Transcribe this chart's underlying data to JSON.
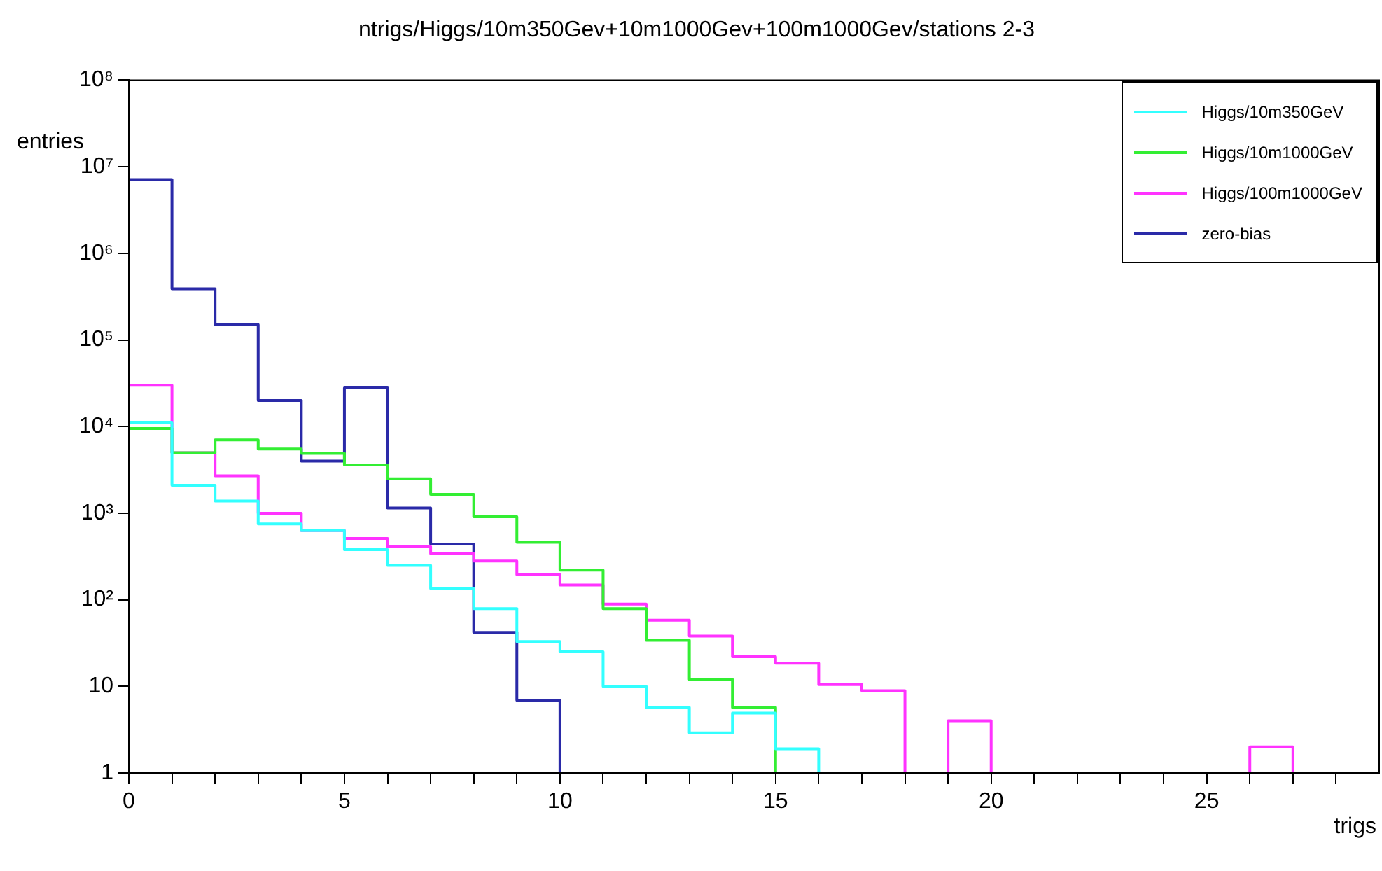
{
  "chart_data": {
    "type": "histogram",
    "title": "ntrigs/Higgs/10m350Gev+10m1000Gev+100m1000Gev/stations 2-3",
    "xlabel": "trigs",
    "ylabel": "entries",
    "bins": [
      0,
      1,
      2,
      3,
      4,
      5,
      6,
      7,
      8,
      9,
      10,
      11,
      12,
      13,
      14,
      15,
      16,
      17,
      18,
      19,
      20,
      21,
      22,
      23,
      24,
      25,
      26,
      27,
      28,
      29
    ],
    "series": [
      {
        "name": "Higgs/10m350GeV",
        "color": "#33ffff",
        "values": [
          11000,
          2100,
          1380,
          750,
          630,
          380,
          250,
          135,
          79,
          33,
          25,
          10,
          5.7,
          2.9,
          4.9,
          1.9,
          null,
          null,
          null,
          null,
          null,
          null,
          null,
          null,
          null,
          null,
          null,
          null,
          null
        ]
      },
      {
        "name": "Higgs/10m1000GeV",
        "color": "#33ee33",
        "values": [
          9500,
          5000,
          7000,
          5500,
          4900,
          3600,
          2500,
          1650,
          910,
          460,
          220,
          79,
          34,
          12,
          5.7,
          null,
          null,
          null,
          null,
          null,
          null,
          null,
          null,
          null,
          null,
          null,
          null,
          null,
          null
        ]
      },
      {
        "name": "Higgs/100m1000GeV",
        "color": "#ff33ff",
        "values": [
          30000,
          5000,
          2700,
          1000,
          630,
          510,
          410,
          340,
          280,
          195,
          148,
          89,
          58,
          38,
          22,
          18.5,
          10.5,
          8.9,
          null,
          4,
          null,
          null,
          null,
          null,
          null,
          null,
          2,
          null,
          null
        ]
      },
      {
        "name": "zero-bias",
        "color": "#2a2aa8",
        "values": [
          7100000,
          390000,
          150000,
          20000,
          4000,
          28000,
          1150,
          440,
          42,
          6.9,
          null,
          null,
          null,
          null,
          null,
          null,
          null,
          null,
          null,
          null,
          null,
          null,
          null,
          null,
          null,
          null,
          null,
          null,
          null
        ]
      }
    ],
    "xlim": [
      0,
      29
    ],
    "xticks": [
      0,
      {
        "value": 1,
        "label": null
      },
      {
        "value": 2,
        "label": null
      },
      {
        "value": 3,
        "label": null
      },
      {
        "value": 4,
        "label": null
      },
      5,
      {
        "value": 6,
        "label": null
      },
      {
        "value": 7,
        "label": null
      },
      {
        "value": 8,
        "label": null
      },
      {
        "value": 9,
        "label": null
      },
      10,
      {
        "value": 11,
        "label": null
      },
      {
        "value": 12,
        "label": null
      },
      {
        "value": 13,
        "label": null
      },
      {
        "value": 14,
        "label": null
      },
      15,
      {
        "value": 16,
        "label": null
      },
      {
        "value": 17,
        "label": null
      },
      {
        "value": 18,
        "label": null
      },
      {
        "value": 19,
        "label": null
      },
      20,
      {
        "value": 21,
        "label": null
      },
      {
        "value": 22,
        "label": null
      },
      {
        "value": 23,
        "label": null
      },
      {
        "value": 24,
        "label": null
      },
      25,
      {
        "value": 26,
        "label": null
      },
      {
        "value": 27,
        "label": null
      },
      {
        "value": 28,
        "label": null
      }
    ],
    "ylim": [
      1,
      100000000
    ],
    "yticks": [
      1,
      10,
      {
        "value": 100,
        "label": "10²"
      },
      {
        "value": 1000,
        "label": "10³"
      },
      {
        "value": 10000,
        "label": "10⁴"
      },
      {
        "value": 100000,
        "label": "10⁵"
      },
      {
        "value": 1000000,
        "label": "10⁶"
      },
      {
        "value": 10000000,
        "label": "10⁷"
      },
      {
        "value": 100000000,
        "label": "10⁸"
      }
    ],
    "log": true,
    "grid": false,
    "legend": "top right",
    "line_style": "solid",
    "marker": "none"
  }
}
